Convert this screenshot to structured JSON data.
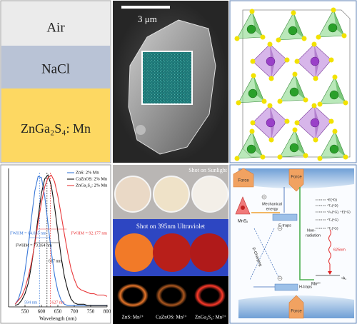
{
  "layers": [
    "Air",
    "NaCl",
    "ZnGa₂S₄: Mn"
  ],
  "sem": {
    "scale_bar": "3 μm"
  },
  "chart_data": {
    "type": "line",
    "x_label": "Wavelength (nm)",
    "x": [
      520,
      530,
      540,
      550,
      560,
      570,
      580,
      590,
      600,
      610,
      620,
      630,
      640,
      650,
      660,
      670,
      680,
      690,
      700,
      710,
      720,
      730,
      740,
      750,
      760,
      770,
      780,
      790,
      800
    ],
    "series": [
      {
        "name": "ZnS: 2% Mn",
        "color": "#3a78d8",
        "values": [
          0.02,
          0.06,
          0.14,
          0.27,
          0.46,
          0.68,
          0.88,
          0.99,
          0.98,
          0.84,
          0.63,
          0.42,
          0.24,
          0.12,
          0.05,
          0.02,
          0.01,
          0.01,
          0.01,
          0.01,
          0.01,
          0.01,
          0.01,
          0.01,
          0.01,
          0.01,
          0.01,
          0.01,
          0.01
        ]
      },
      {
        "name": "CaZnOS: 2% Mn",
        "color": "#111111",
        "values": [
          0.01,
          0.02,
          0.05,
          0.1,
          0.18,
          0.32,
          0.49,
          0.68,
          0.86,
          0.97,
          1.0,
          0.92,
          0.76,
          0.57,
          0.38,
          0.23,
          0.13,
          0.06,
          0.03,
          0.02,
          0.02,
          0.02,
          0.01,
          0.01,
          0.01,
          0.01,
          0.01,
          0.01,
          0.01
        ]
      },
      {
        "name": "ZnGa₂S₄: 2% Mn",
        "color": "#e8383a",
        "values": [
          0.02,
          0.05,
          0.08,
          0.14,
          0.23,
          0.34,
          0.48,
          0.64,
          0.79,
          0.91,
          0.98,
          1.0,
          0.95,
          0.84,
          0.7,
          0.55,
          0.41,
          0.29,
          0.21,
          0.15,
          0.13,
          0.12,
          0.11,
          0.1,
          0.1,
          0.09,
          0.09,
          0.09,
          0.08
        ]
      }
    ],
    "fwhm_labels": [
      "FWHM = 64.035 nm",
      "FWHM = 73.164 nm",
      "FWHM = 92.177 nm"
    ],
    "peaks": [
      {
        "value": 594,
        "label": "594 nm"
      },
      {
        "value": 617,
        "label": "617 nm"
      },
      {
        "value": 627,
        "label": "627 nm"
      }
    ],
    "xlim": [
      500,
      800
    ],
    "xticks": [
      550,
      600,
      650,
      700,
      750,
      800
    ],
    "ylim": [
      0,
      1.05
    ],
    "legend": "upper right"
  },
  "photos": {
    "top_caption": "Shot on Sunlight",
    "middle_caption": "Shot on 395nm Ultraviolet",
    "samples": [
      "ZnS: Mn²⁺",
      "CaZnOS: Mn²⁺",
      "ZnGa₂S₄: Mn²⁺"
    ]
  },
  "diagram": {
    "force_labels": [
      "Force",
      "Force",
      "Force"
    ],
    "mns": "MnSₓ",
    "mechanical": [
      "Mechanical",
      "energy"
    ],
    "e_traps": "E-traps",
    "h_traps": "H-traps",
    "non_radiation": [
      "Non-",
      "radiation"
    ],
    "e_charging": "E-Charging",
    "levels": [
      "⁴E(⁴D)",
      "⁴T₂(⁴D)",
      "⁴A₁(⁴G), ⁴E(⁴G)",
      "⁴T₂(⁴G)",
      "⁴T₁(⁴G)",
      "⁶A₁"
    ],
    "emission": "625nm",
    "ion": "Mn²⁺"
  }
}
